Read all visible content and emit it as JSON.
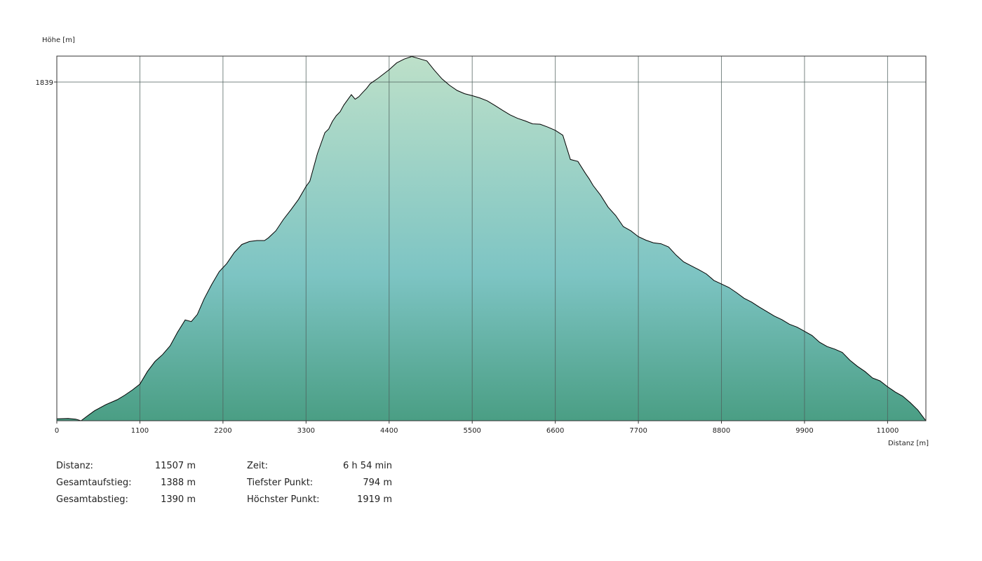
{
  "chart_data": {
    "type": "area",
    "ylabel": "Höhe [m]",
    "xlabel": "Distanz [m]",
    "xlim": [
      0,
      11507
    ],
    "ylim": [
      794,
      1919
    ],
    "x_ticks": [
      0,
      1100,
      2200,
      3300,
      4400,
      5500,
      6600,
      7700,
      8800,
      9900,
      11000
    ],
    "y_ticks": [
      1839
    ],
    "grid": true,
    "colors": {
      "top": "#bde0c9",
      "middle": "#7dc4c3",
      "bottom": "#4a9e84",
      "line": "#000000",
      "grid": "#4d5f5b"
    },
    "series": [
      {
        "x": [
          0,
          150,
          250,
          320,
          400,
          500,
          650,
          800,
          900,
          1000,
          1100,
          1200,
          1300,
          1400,
          1500,
          1600,
          1700,
          1780,
          1860,
          1950,
          2050,
          2150,
          2250,
          2350,
          2450,
          2550,
          2650,
          2750,
          2800,
          2900,
          3000,
          3100,
          3200,
          3300,
          3350,
          3450,
          3550,
          3600,
          3650,
          3700,
          3750,
          3800,
          3900,
          3950,
          4000,
          4050,
          4100,
          4150,
          4250,
          4400,
          4500,
          4600,
          4700,
          4800,
          4900,
          5000,
          5100,
          5200,
          5300,
          5400,
          5500,
          5600,
          5700,
          5800,
          5900,
          6000,
          6100,
          6200,
          6300,
          6400,
          6500,
          6600,
          6700,
          6800,
          6900,
          7000,
          7050,
          7100,
          7200,
          7300,
          7400,
          7500,
          7600,
          7700,
          7800,
          7900,
          8000,
          8100,
          8200,
          8300,
          8400,
          8500,
          8600,
          8700,
          8800,
          8900,
          9000,
          9100,
          9200,
          9300,
          9400,
          9500,
          9600,
          9700,
          9800,
          9900,
          10000,
          10100,
          10200,
          10300,
          10400,
          10500,
          10600,
          10700,
          10800,
          10900,
          11000,
          11100,
          11200,
          11300,
          11400,
          11507
        ],
        "y": [
          800,
          801,
          799,
          794,
          808,
          825,
          844,
          859,
          873,
          889,
          907,
          946,
          977,
          998,
          1025,
          1068,
          1105,
          1100,
          1122,
          1170,
          1214,
          1254,
          1279,
          1313,
          1338,
          1347,
          1350,
          1350,
          1358,
          1380,
          1415,
          1445,
          1477,
          1517,
          1533,
          1618,
          1683,
          1694,
          1718,
          1735,
          1747,
          1768,
          1800,
          1786,
          1794,
          1807,
          1819,
          1834,
          1850,
          1877,
          1898,
          1910,
          1918,
          1911,
          1904,
          1875,
          1849,
          1829,
          1813,
          1803,
          1797,
          1790,
          1781,
          1767,
          1752,
          1738,
          1727,
          1719,
          1710,
          1709,
          1700,
          1690,
          1675,
          1600,
          1594,
          1557,
          1540,
          1520,
          1490,
          1453,
          1427,
          1393,
          1380,
          1362,
          1351,
          1343,
          1340,
          1330,
          1305,
          1284,
          1272,
          1260,
          1247,
          1227,
          1216,
          1205,
          1189,
          1172,
          1160,
          1145,
          1131,
          1117,
          1106,
          1092,
          1083,
          1070,
          1057,
          1036,
          1023,
          1015,
          1005,
          981,
          962,
          946,
          926,
          917,
          899,
          883,
          870,
          850,
          827,
          794
        ]
      }
    ]
  },
  "stats": {
    "distance_label": "Distanz:",
    "distance_value": "11507 m",
    "ascent_label": "Gesamtaufstieg:",
    "ascent_value": "1388 m",
    "descent_label": "Gesamtabstieg:",
    "descent_value": "1390 m",
    "time_label": "Zeit:",
    "time_value": "6 h 54 min",
    "lowest_label": "Tiefster Punkt:",
    "lowest_value": "794 m",
    "highest_label": "Höchster Punkt:",
    "highest_value": "1919 m"
  }
}
